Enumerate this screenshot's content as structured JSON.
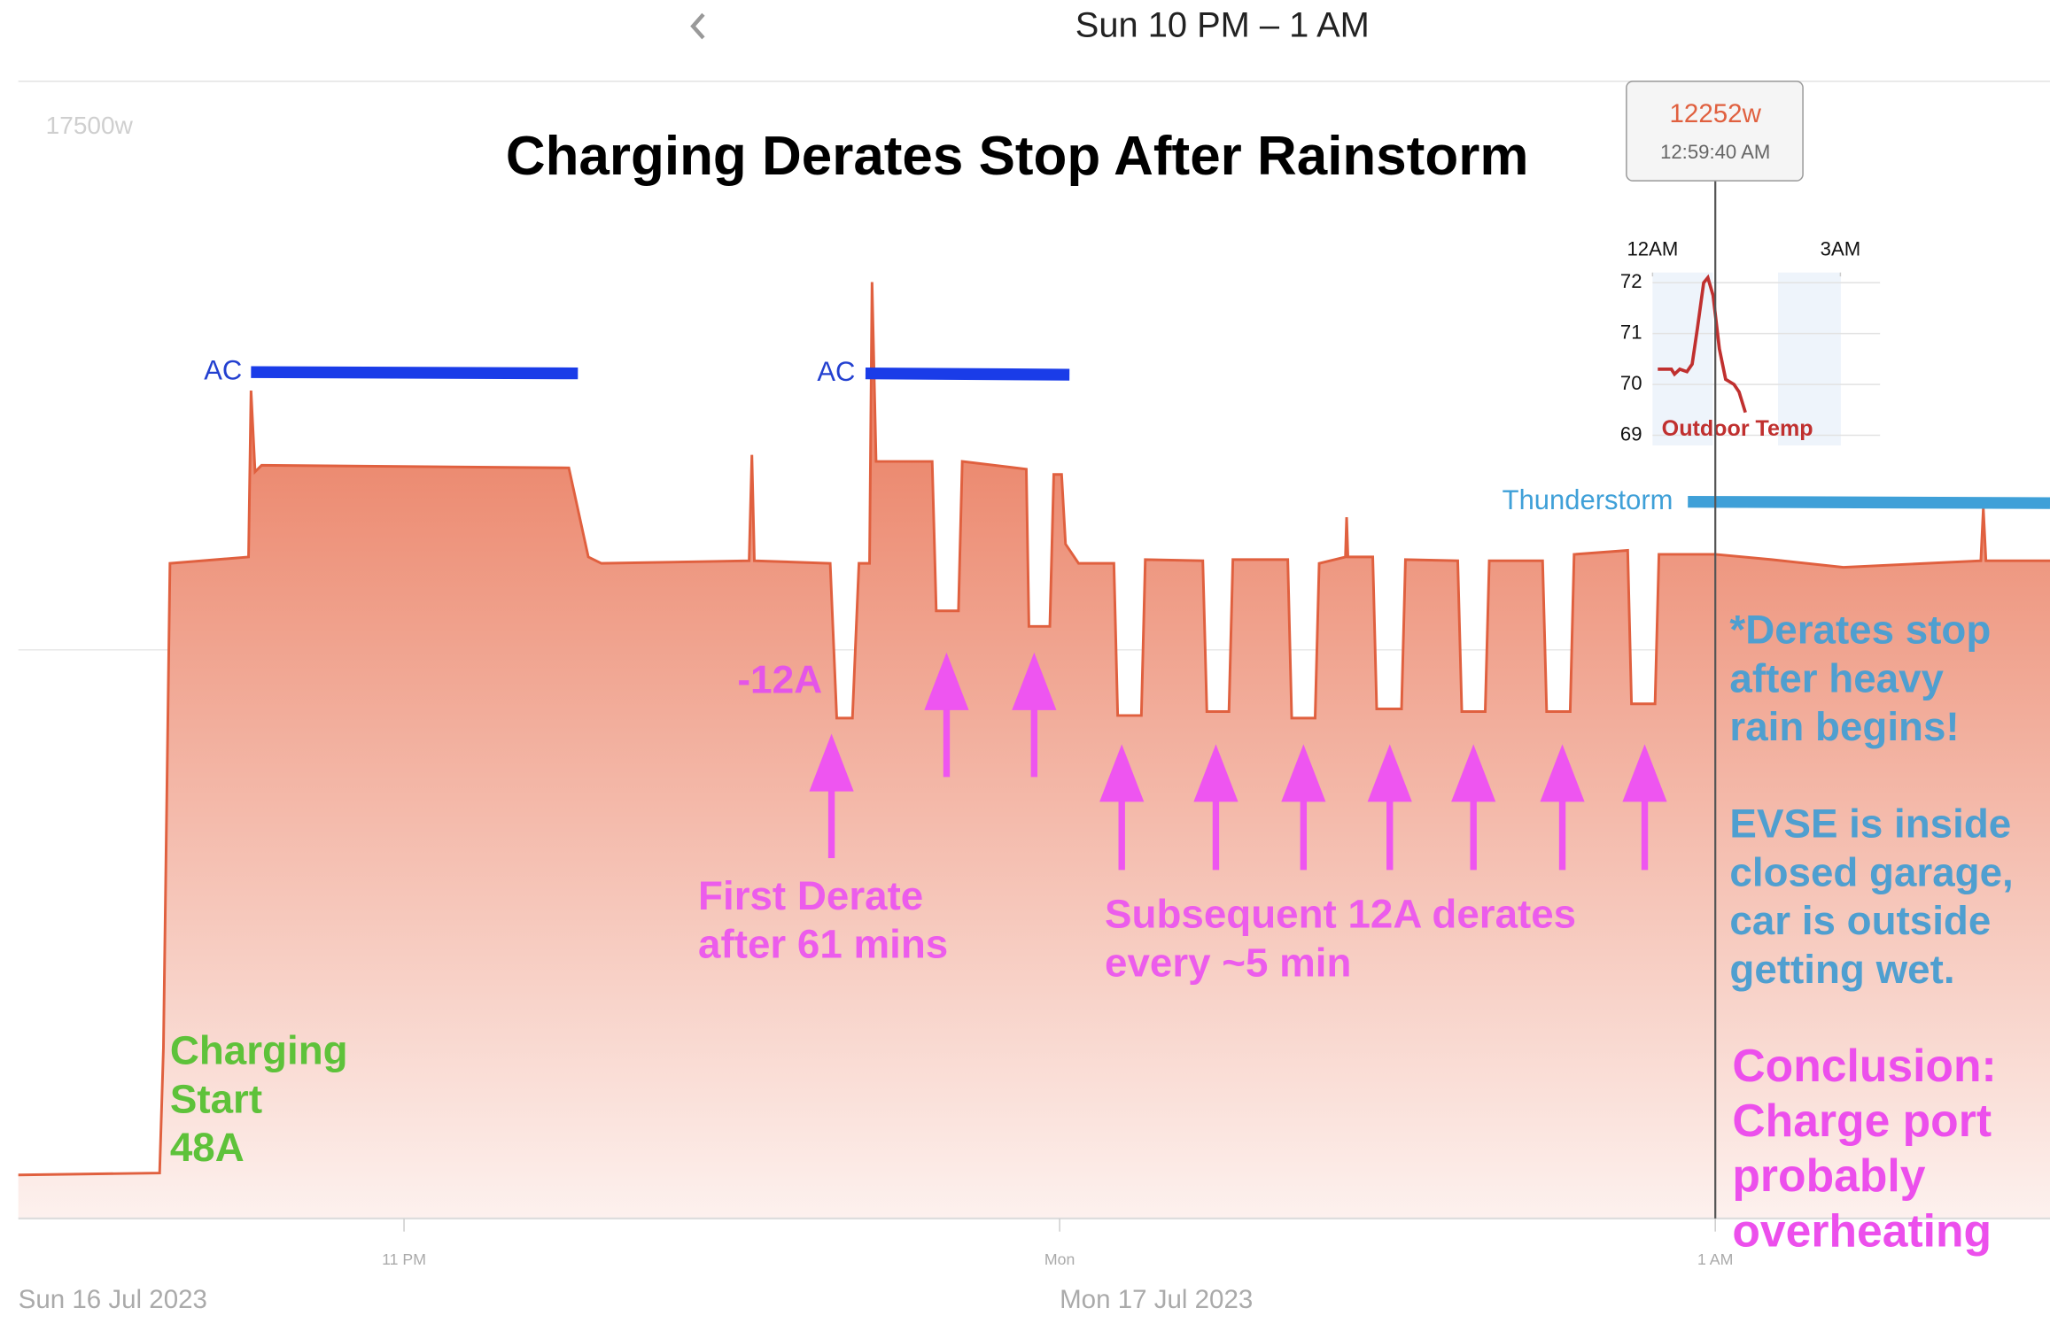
{
  "header": {
    "title": "Sun 10 PM – 1 AM"
  },
  "tooltip": {
    "value": "12252w",
    "time": "12:59:40 AM"
  },
  "chart_data": [
    {
      "type": "area",
      "title": "Charging Derates Stop After Rainstorm",
      "color": "#e0603f",
      "x": [
        "2023-07-16T22:24:42",
        "2023-07-16T22:37:38",
        "2023-07-16T22:37:59",
        "2023-07-16T22:38:35",
        "2023-07-16T22:45:46",
        "2023-07-16T22:46:00",
        "2023-07-16T22:46:22",
        "2023-07-16T22:46:58",
        "2023-07-16T23:15:05",
        "2023-07-16T23:16:52",
        "2023-07-16T23:18:04",
        "2023-07-16T23:31:35",
        "2023-07-16T23:31:50",
        "2023-07-16T23:32:04",
        "2023-07-16T23:39:00",
        "2023-07-16T23:39:36",
        "2023-07-16T23:41:02",
        "2023-07-16T23:41:38",
        "2023-07-16T23:42:36",
        "2023-07-16T23:42:50",
        "2023-07-16T23:43:12",
        "2023-07-16T23:48:20",
        "2023-07-16T23:48:42",
        "2023-07-16T23:50:44",
        "2023-07-16T23:51:05",
        "2023-07-16T23:56:57",
        "2023-07-16T23:57:11",
        "2023-07-16T23:59:06",
        "2023-07-16T23:59:28",
        "2023-07-17T00:00:11",
        "2023-07-17T00:00:32",
        "2023-07-17T00:01:44",
        "2023-07-17T00:04:58",
        "2023-07-17T00:05:19",
        "2023-07-17T00:07:29",
        "2023-07-17T00:07:50",
        "2023-07-17T00:13:06",
        "2023-07-17T00:13:28",
        "2023-07-17T00:15:30",
        "2023-07-17T00:15:51",
        "2023-07-17T00:20:53",
        "2023-07-17T00:21:14",
        "2023-07-17T00:23:23",
        "2023-07-17T00:23:45",
        "2023-07-17T00:26:09",
        "2023-07-17T00:26:16",
        "2023-07-17T00:26:23",
        "2023-07-17T00:28:39",
        "2023-07-17T00:29:01",
        "2023-07-17T00:31:17",
        "2023-07-17T00:31:39",
        "2023-07-17T00:36:26",
        "2023-07-17T00:36:48",
        "2023-07-17T00:38:57",
        "2023-07-17T00:39:19",
        "2023-07-17T00:44:12",
        "2023-07-17T00:44:34",
        "2023-07-17T00:46:43",
        "2023-07-17T00:47:05",
        "2023-07-17T00:51:59",
        "2023-07-17T00:52:20",
        "2023-07-17T00:54:29",
        "2023-07-17T00:54:51",
        "2023-07-17T01:00:00",
        "2023-07-17T01:05:09",
        "2023-07-17T01:11:44",
        "2023-07-17T01:24:18",
        "2023-07-17T01:24:32",
        "2023-07-17T01:24:46",
        "2023-07-17T01:30:38"
      ],
      "values": [
        670,
        700,
        2620,
        10080,
        10180,
        12740,
        11490,
        11590,
        11550,
        10180,
        10080,
        10120,
        11750,
        10120,
        10080,
        7700,
        7700,
        10080,
        10080,
        14410,
        11650,
        11650,
        9350,
        9350,
        11650,
        11530,
        9110,
        9110,
        11450,
        11450,
        10380,
        10080,
        10080,
        7740,
        7740,
        10140,
        10120,
        7800,
        7800,
        10140,
        10140,
        7700,
        7700,
        10080,
        10180,
        10790,
        10180,
        10180,
        7840,
        7840,
        10140,
        10120,
        7800,
        7800,
        10120,
        10120,
        7800,
        7800,
        10220,
        10280,
        7920,
        7920,
        10220,
        10220,
        10140,
        10020,
        10120,
        10930,
        10120,
        10120
      ],
      "xlim": [
        "2023-07-16T22:24:42",
        "2023-07-17T01:30:38"
      ],
      "xticks": [
        {
          "value": "2023-07-16T23:00:00",
          "label": "11 PM"
        },
        {
          "value": "2023-07-17T00:00:00",
          "label": "Mon"
        },
        {
          "value": "2023-07-17T01:00:00",
          "label": "1 AM"
        }
      ],
      "date_labels": [
        "Sun 16 Jul 2023",
        "Mon 17 Jul 2023"
      ],
      "ylim": [
        0,
        17500
      ],
      "yticks": [
        {
          "value": 17500,
          "label": "17500w"
        }
      ],
      "grid": true,
      "annotations": [
        [
          "AC"
        ],
        [
          "AC"
        ],
        [
          "-12A"
        ],
        [
          "First Derate",
          "after 61 mins"
        ],
        [
          "Subsequent 12A derates",
          "every ~5 min"
        ],
        [
          "Charging",
          "Start",
          "48A"
        ],
        [
          "Thunderstorm"
        ],
        [
          "*Derates stop",
          "after heavy",
          "rain begins!"
        ],
        [
          "EVSE is inside",
          "closed garage,",
          "car is outside",
          "getting wet."
        ],
        [
          "Conclusion:",
          "Charge port",
          "probably",
          "overheating"
        ]
      ]
    },
    {
      "type": "line",
      "x": [
        "2023-07-17T00:05",
        "2023-07-17T00:11",
        "2023-07-17T00:18",
        "2023-07-17T00:21",
        "2023-07-17T00:26",
        "2023-07-17T00:33",
        "2023-07-17T00:38",
        "2023-07-17T00:43",
        "2023-07-17T00:49",
        "2023-07-17T00:53",
        "2023-07-17T00:58",
        "2023-07-17T01:04",
        "2023-07-17T01:10",
        "2023-07-17T01:18",
        "2023-07-17T01:23",
        "2023-07-17T01:29"
      ],
      "series": [
        {
          "name": "Outdoor Temp",
          "color": "#c0302f",
          "values": [
            70.3,
            70.3,
            70.3,
            70.2,
            70.3,
            70.25,
            70.4,
            71.1,
            72.0,
            72.1,
            71.75,
            70.7,
            70.1,
            70.0,
            69.85,
            69.45
          ]
        }
      ],
      "xlim": [
        "2023-07-17T00:00",
        "2023-07-17T03:38"
      ],
      "xticks": [
        {
          "value": "2023-07-17T00:00",
          "label": "12AM"
        },
        {
          "value": "2023-07-17T03:00",
          "label": "3AM"
        }
      ],
      "ylim": [
        68.8,
        72.2
      ],
      "yticks": [
        69,
        70,
        71,
        72
      ],
      "grid": true
    }
  ]
}
